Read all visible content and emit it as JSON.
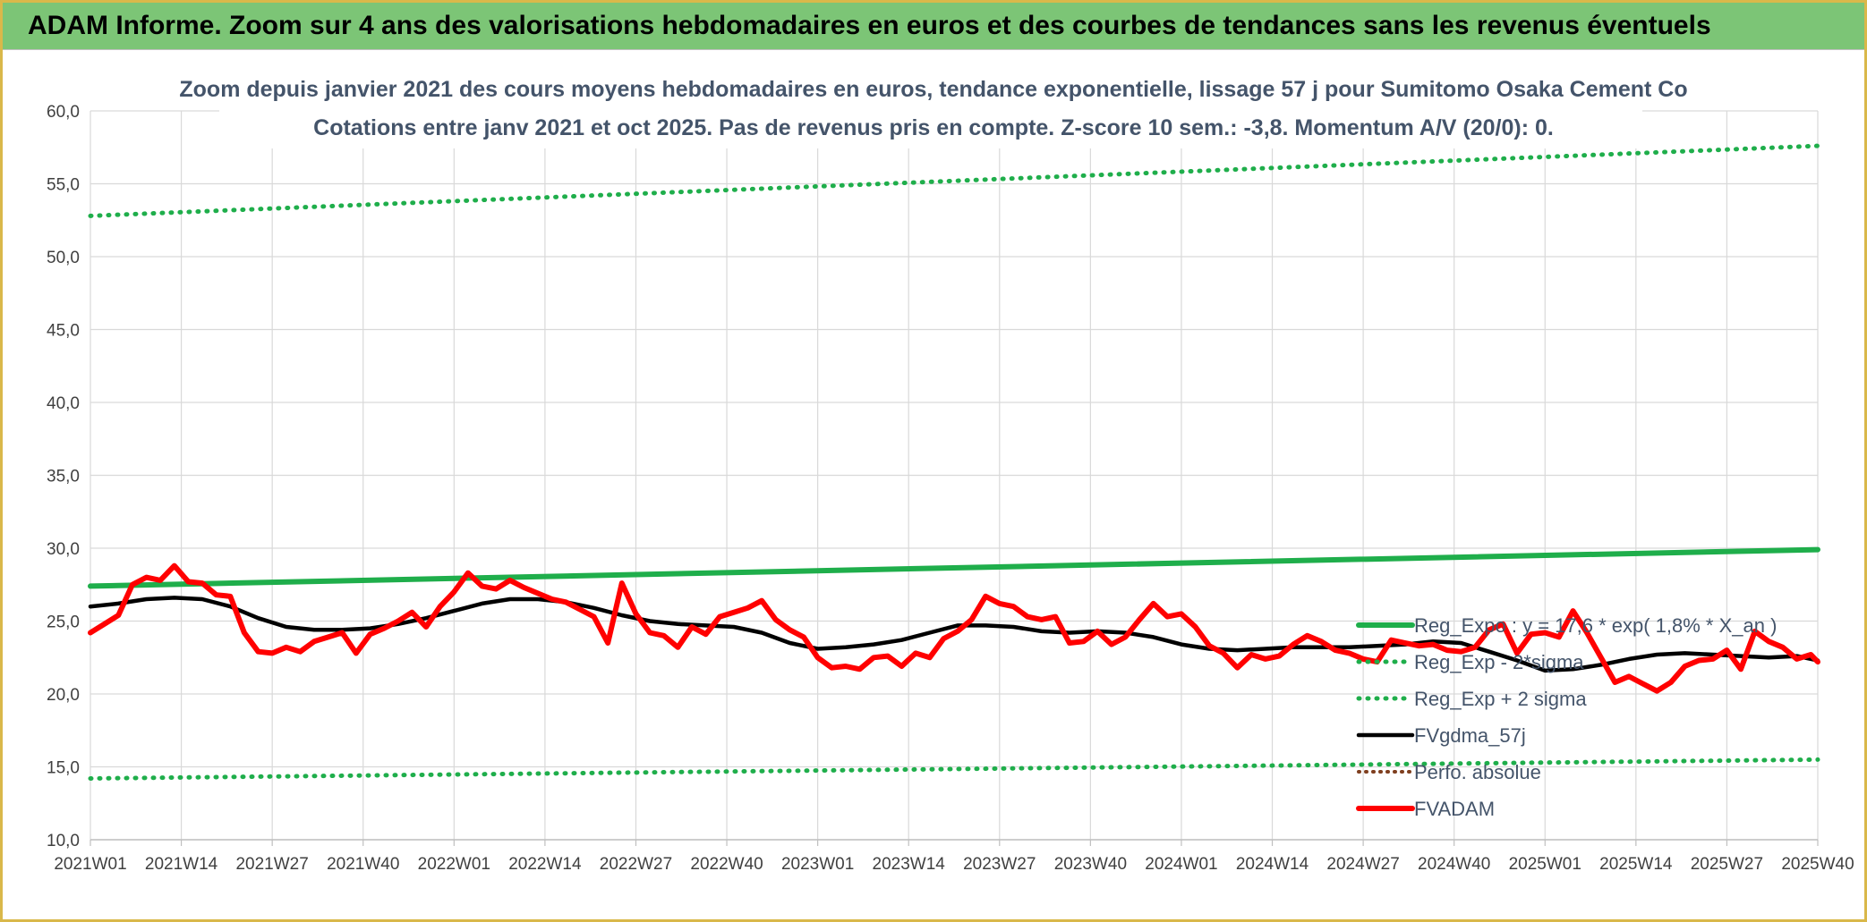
{
  "header": {
    "banner_title": "ADAM Informe. Zoom sur 4 ans des valorisations hebdomadaires en euros et des courbes de tendances sans les revenus éventuels"
  },
  "chart_data": {
    "type": "line",
    "title": "Zoom depuis janvier 2021 des cours moyens hebdomadaires en euros, tendance exponentielle, lissage 57 j pour Sumitomo Osaka Cement Co",
    "subtitle": "Cotations entre janv 2021 et oct 2025. Pas de revenus pris en compte. Z-score 10 sem.: -3,8. Momentum A/V (20/0): 0.",
    "xlabel": "",
    "ylabel": "",
    "ylim": [
      10,
      60
    ],
    "yticks": [
      "10,0",
      "15,0",
      "20,0",
      "25,0",
      "30,0",
      "35,0",
      "40,0",
      "45,0",
      "50,0",
      "55,0",
      "60,0"
    ],
    "xticks": [
      "2021W01",
      "2021W14",
      "2021W27",
      "2021W40",
      "2022W01",
      "2022W14",
      "2022W27",
      "2022W40",
      "2023W01",
      "2023W14",
      "2023W27",
      "2023W40",
      "2024W01",
      "2024W14",
      "2024W27",
      "2024W40",
      "2025W01",
      "2025W14",
      "2025W27",
      "2025W40"
    ],
    "x_range_weeks": [
      0,
      247
    ],
    "grid": true,
    "legend_position": "right",
    "colors": {
      "reg_expo": "#1fae4b",
      "reg_minus": "#1fae4b",
      "reg_plus": "#1fae4b",
      "fvgdma": "#000000",
      "perfo": "#7f3f1f",
      "fvadam": "#ff0000",
      "grid": "#d9d9d9",
      "axis": "#bfbfbf"
    },
    "series": [
      {
        "name": "Reg_Expo : y = 17,6 * exp( 1,8% *  X_an )",
        "style": "solid-thick",
        "x": [
          0,
          247
        ],
        "values": [
          27.4,
          29.9
        ]
      },
      {
        "name": "Reg_Exp - 2*sigma",
        "style": "dotted",
        "x": [
          0,
          247
        ],
        "values": [
          14.2,
          15.5
        ]
      },
      {
        "name": "Reg_Exp + 2 sigma",
        "style": "dotted",
        "x": [
          0,
          247
        ],
        "values": [
          52.8,
          57.6
        ]
      },
      {
        "name": "FVgdma_57j",
        "style": "solid",
        "x": [
          0,
          4,
          8,
          12,
          16,
          20,
          24,
          28,
          32,
          36,
          40,
          44,
          48,
          52,
          56,
          60,
          64,
          68,
          72,
          76,
          80,
          84,
          88,
          92,
          96,
          100,
          104,
          108,
          112,
          116,
          120,
          124,
          128,
          132,
          136,
          140,
          144,
          148,
          152,
          156,
          160,
          164,
          168,
          172,
          176,
          180,
          184,
          188,
          192,
          196,
          200,
          204,
          208,
          212,
          216,
          220,
          224,
          228,
          232,
          236,
          240,
          244,
          247
        ],
        "values": [
          26.0,
          26.2,
          26.5,
          26.6,
          26.5,
          26.0,
          25.2,
          24.6,
          24.4,
          24.4,
          24.5,
          24.8,
          25.2,
          25.7,
          26.2,
          26.5,
          26.5,
          26.3,
          25.9,
          25.4,
          25.0,
          24.8,
          24.7,
          24.6,
          24.2,
          23.5,
          23.1,
          23.2,
          23.4,
          23.7,
          24.2,
          24.7,
          24.7,
          24.6,
          24.3,
          24.2,
          24.3,
          24.2,
          23.9,
          23.4,
          23.1,
          23.0,
          23.1,
          23.2,
          23.2,
          23.2,
          23.3,
          23.4,
          23.6,
          23.5,
          22.9,
          22.3,
          21.6,
          21.7,
          22.0,
          22.4,
          22.7,
          22.8,
          22.7,
          22.6,
          22.5,
          22.6,
          22.3
        ]
      },
      {
        "name": "Perfo. absolue",
        "style": "dotted-dark",
        "x": [],
        "values": []
      },
      {
        "name": "FVADAM",
        "style": "solid-thick",
        "x": [
          0,
          2,
          4,
          6,
          8,
          10,
          12,
          14,
          16,
          18,
          20,
          22,
          24,
          26,
          28,
          30,
          32,
          34,
          36,
          38,
          40,
          42,
          44,
          46,
          48,
          50,
          52,
          54,
          56,
          58,
          60,
          62,
          64,
          66,
          68,
          70,
          72,
          74,
          76,
          78,
          80,
          82,
          84,
          86,
          88,
          90,
          92,
          94,
          96,
          98,
          100,
          102,
          104,
          106,
          108,
          110,
          112,
          114,
          116,
          118,
          120,
          122,
          124,
          126,
          128,
          130,
          132,
          134,
          136,
          138,
          140,
          142,
          144,
          146,
          148,
          150,
          152,
          154,
          156,
          158,
          160,
          162,
          164,
          166,
          168,
          170,
          172,
          174,
          176,
          178,
          180,
          182,
          184,
          186,
          188,
          190,
          192,
          194,
          196,
          198,
          200,
          202,
          204,
          206,
          208,
          210,
          212,
          214,
          216,
          218,
          220,
          222,
          224,
          226,
          228,
          230,
          232,
          234,
          236,
          238,
          240,
          242,
          244,
          246,
          247
        ],
        "values": [
          24.2,
          24.8,
          25.4,
          27.5,
          28.0,
          27.8,
          28.8,
          27.7,
          27.6,
          26.8,
          26.7,
          24.2,
          22.9,
          22.8,
          23.2,
          22.9,
          23.6,
          23.9,
          24.2,
          22.8,
          24.1,
          24.5,
          25.0,
          25.6,
          24.6,
          26.0,
          27.0,
          28.3,
          27.4,
          27.2,
          27.8,
          27.3,
          26.9,
          26.5,
          26.3,
          25.8,
          25.3,
          23.5,
          27.6,
          25.5,
          24.2,
          24.0,
          23.2,
          24.6,
          24.1,
          25.3,
          25.6,
          25.9,
          26.4,
          25.1,
          24.4,
          23.9,
          22.5,
          21.8,
          21.9,
          21.7,
          22.5,
          22.6,
          21.9,
          22.8,
          22.5,
          23.8,
          24.3,
          25.1,
          26.7,
          26.2,
          26.0,
          25.3,
          25.1,
          25.3,
          23.5,
          23.6,
          24.3,
          23.4,
          23.9,
          25.1,
          26.2,
          25.3,
          25.5,
          24.6,
          23.3,
          22.8,
          21.8,
          22.7,
          22.4,
          22.6,
          23.4,
          24.0,
          23.6,
          23.0,
          22.8,
          22.4,
          22.2,
          23.7,
          23.5,
          23.3,
          23.4,
          23.0,
          22.9,
          23.2,
          24.4,
          24.8,
          22.8,
          24.1,
          24.2,
          23.9,
          25.7,
          24.2,
          22.5,
          20.8,
          21.2,
          20.7,
          20.2,
          20.8,
          21.9,
          22.3,
          22.4,
          23.0,
          21.7,
          24.3,
          23.6,
          23.2,
          22.4,
          22.7,
          22.2
        ]
      }
    ]
  }
}
